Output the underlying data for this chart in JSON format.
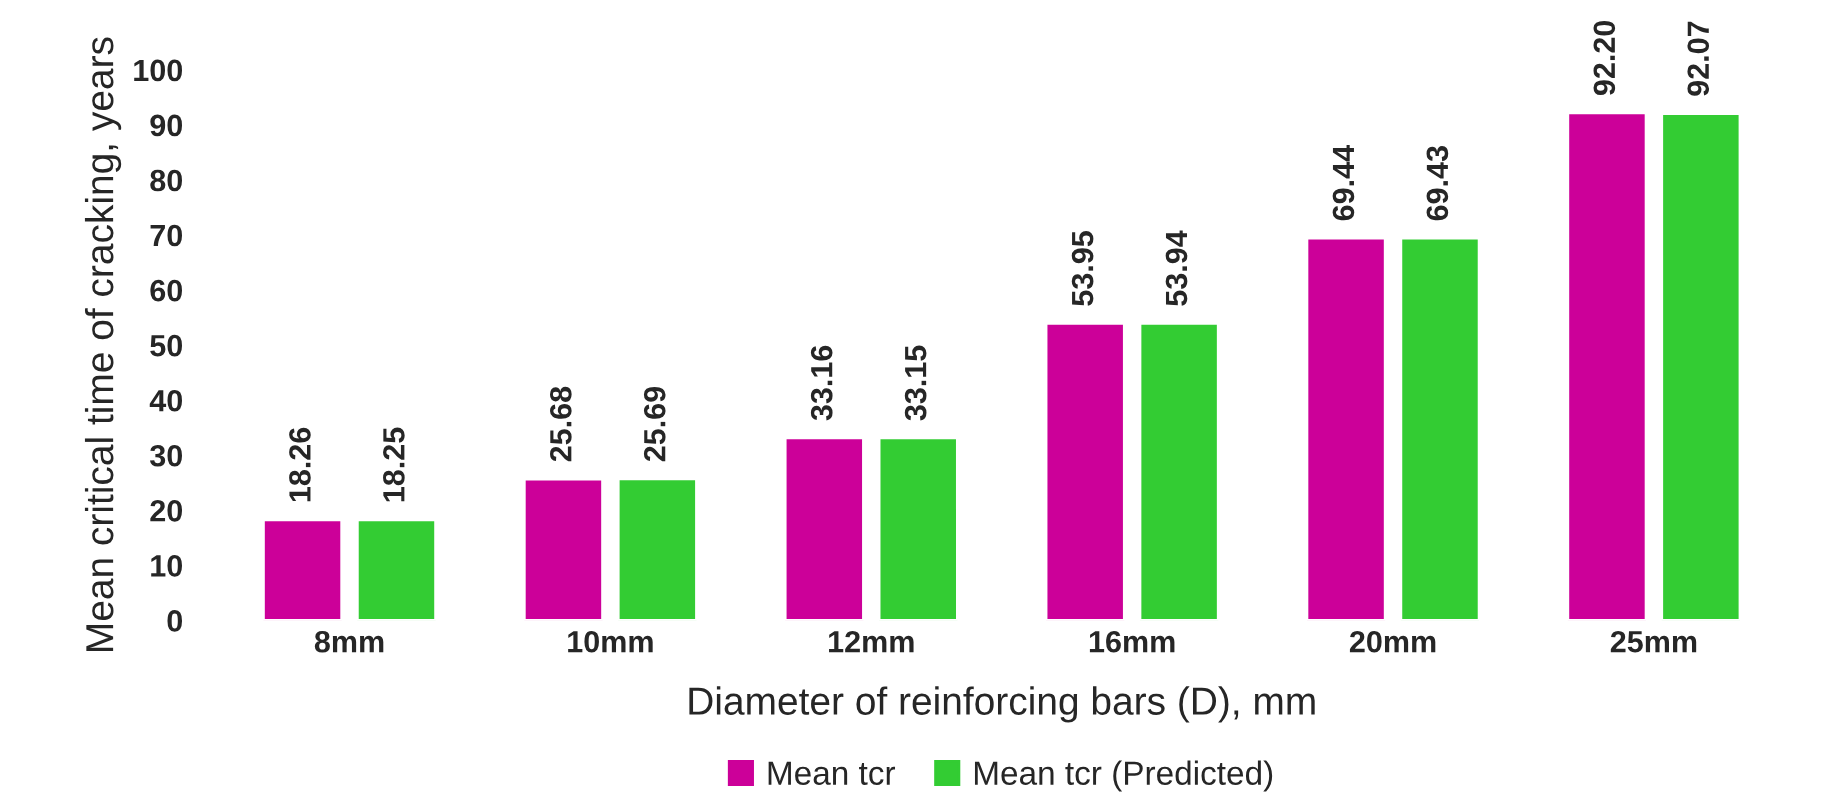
{
  "chart_data": {
    "type": "bar",
    "xlabel": "Diameter of reinforcing bars (D), mm",
    "ylabel": "Mean critical time of cracking, years",
    "categories": [
      "8mm",
      "10mm",
      "12mm",
      "16mm",
      "20mm",
      "25mm"
    ],
    "series": [
      {
        "name": "Mean tcr",
        "color": "#cc0099",
        "values": [
          18.26,
          25.68,
          33.16,
          53.95,
          69.44,
          92.2
        ],
        "value_labels": [
          "18.26",
          "25.68",
          "33.16",
          "53.95",
          "69.44",
          "92.20"
        ]
      },
      {
        "name": "Mean tcr (Predicted)",
        "color": "#33cc33",
        "values": [
          18.25,
          25.69,
          33.15,
          53.94,
          69.43,
          92.07
        ],
        "value_labels": [
          "18.25",
          "25.69",
          "33.15",
          "53.94",
          "69.43",
          "92.07"
        ]
      }
    ],
    "ylim": [
      0,
      100
    ],
    "yticks": [
      0,
      10,
      20,
      30,
      40,
      50,
      60,
      70,
      80,
      90,
      100
    ],
    "grid": false,
    "legend": "bottom"
  }
}
